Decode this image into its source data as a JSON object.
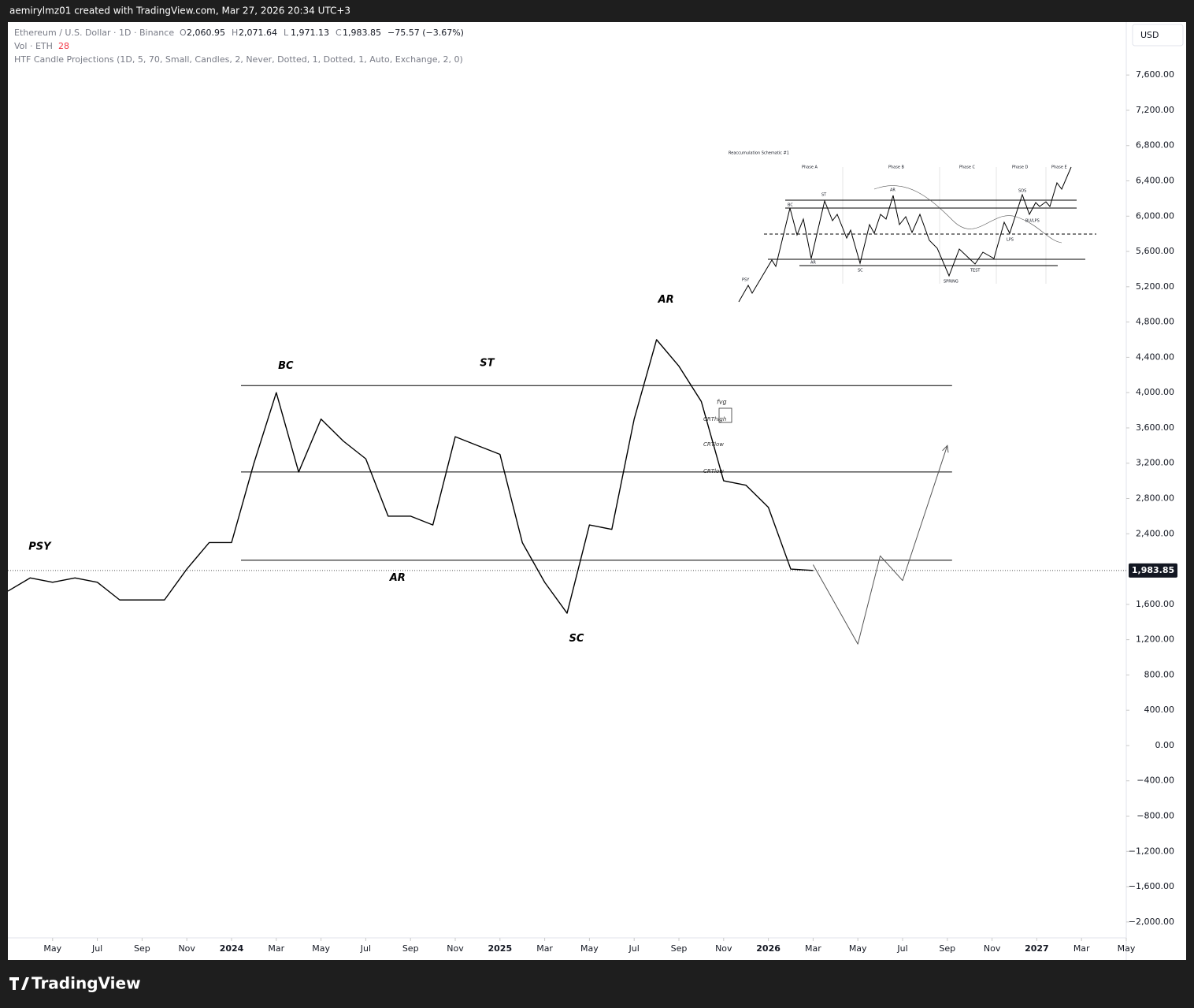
{
  "chart_data": {
    "type": "line",
    "top_caption": "aemirylmz01 created with TradingView.com, Mar 27, 2026 20:34 UTC+3",
    "symbol": "Ethereum / U.S. Dollar · 1D · Binance",
    "ohlc": [
      {
        "key": "O",
        "value": "2,060.95"
      },
      {
        "key": "H",
        "value": "2,071.64"
      },
      {
        "key": "L",
        "value": "1,971.13"
      },
      {
        "key": "C",
        "value": "1,983.85"
      }
    ],
    "change": "−75.57 (−3.67%)",
    "volume_label": "Vol · ETH",
    "volume_value": "28",
    "indicator": "HTF Candle Projections (1D, 5, 70, Small, Candles, 2, Never, Dotted, 1, Dotted, 1, Auto, Exchange, 2, 0)",
    "currency": "USD",
    "brand": "TradingView",
    "last_price": {
      "value": 1983.85,
      "label": "1,983.85"
    },
    "xlim": [
      "2023-03",
      "2027-05"
    ],
    "ylim": [
      -2180,
      8200
    ],
    "xticks": [
      {
        "value": "2023-05",
        "label": "May"
      },
      {
        "value": "2023-07",
        "label": "Jul"
      },
      {
        "value": "2023-09",
        "label": "Sep"
      },
      {
        "value": "2023-11",
        "label": "Nov"
      },
      {
        "value": "2024-01",
        "label": "2024"
      },
      {
        "value": "2024-03",
        "label": "Mar"
      },
      {
        "value": "2024-05",
        "label": "May"
      },
      {
        "value": "2024-07",
        "label": "Jul"
      },
      {
        "value": "2024-09",
        "label": "Sep"
      },
      {
        "value": "2024-11",
        "label": "Nov"
      },
      {
        "value": "2025-01",
        "label": "2025"
      },
      {
        "value": "2025-03",
        "label": "Mar"
      },
      {
        "value": "2025-05",
        "label": "May"
      },
      {
        "value": "2025-07",
        "label": "Jul"
      },
      {
        "value": "2025-09",
        "label": "Sep"
      },
      {
        "value": "2025-11",
        "label": "Nov"
      },
      {
        "value": "2026-01",
        "label": "2026"
      },
      {
        "value": "2026-03",
        "label": "Mar"
      },
      {
        "value": "2026-05",
        "label": "May"
      },
      {
        "value": "2026-07",
        "label": "Jul"
      },
      {
        "value": "2026-09",
        "label": "Sep"
      },
      {
        "value": "2026-11",
        "label": "Nov"
      },
      {
        "value": "2027-01",
        "label": "2027"
      },
      {
        "value": "2027-03",
        "label": "Mar"
      },
      {
        "value": "2027-05",
        "label": "May"
      }
    ],
    "yticks": [
      {
        "value": 7600,
        "label": "7,600.00"
      },
      {
        "value": 7200,
        "label": "7,200.00"
      },
      {
        "value": 6800,
        "label": "6,800.00"
      },
      {
        "value": 6400,
        "label": "6,400.00"
      },
      {
        "value": 6000,
        "label": "6,000.00"
      },
      {
        "value": 5600,
        "label": "5,600.00"
      },
      {
        "value": 5200,
        "label": "5,200.00"
      },
      {
        "value": 4800,
        "label": "4,800.00"
      },
      {
        "value": 4400,
        "label": "4,400.00"
      },
      {
        "value": 4000,
        "label": "4,000.00"
      },
      {
        "value": 3600,
        "label": "3,600.00"
      },
      {
        "value": 3200,
        "label": "3,200.00"
      },
      {
        "value": 2800,
        "label": "2,800.00"
      },
      {
        "value": 2400,
        "label": "2,400.00"
      },
      {
        "value": 1600,
        "label": "1,600.00"
      },
      {
        "value": 1200,
        "label": "1,200.00"
      },
      {
        "value": 800,
        "label": "800.00"
      },
      {
        "value": 400,
        "label": "400.00"
      },
      {
        "value": 0,
        "label": "0.00"
      },
      {
        "value": -400,
        "label": "−400.00"
      },
      {
        "value": -800,
        "label": "−800.00"
      },
      {
        "value": -1200,
        "label": "−1,200.00"
      },
      {
        "value": -1600,
        "label": "−1,600.00"
      },
      {
        "value": -2000,
        "label": "−2,000.00"
      }
    ],
    "x": [
      "2023-03",
      "2023-04",
      "2023-05",
      "2023-06",
      "2023-07",
      "2023-08",
      "2023-09",
      "2023-10",
      "2023-11",
      "2023-12",
      "2024-01",
      "2024-02",
      "2024-03",
      "2024-04",
      "2024-05",
      "2024-06",
      "2024-07",
      "2024-08",
      "2024-09",
      "2024-10",
      "2024-11",
      "2024-12",
      "2025-01",
      "2025-02",
      "2025-03",
      "2025-04",
      "2025-05",
      "2025-06",
      "2025-07",
      "2025-08",
      "2025-09",
      "2025-10",
      "2025-11",
      "2025-12",
      "2026-01",
      "2026-02",
      "2026-03"
    ],
    "series": [
      {
        "name": "ETH",
        "color": "#000000",
        "values": [
          1750,
          1900,
          1850,
          1900,
          1850,
          1650,
          1650,
          1650,
          2000,
          2300,
          2300,
          3200,
          4000,
          3100,
          3700,
          3450,
          3250,
          2600,
          2600,
          2500,
          3500,
          3400,
          3300,
          2300,
          1850,
          1500,
          2500,
          2450,
          3700,
          4600,
          4300,
          3900,
          3000,
          2950,
          2700,
          2000,
          1984
        ]
      }
    ],
    "projection": {
      "color": "#555555",
      "x": [
        "2026-03",
        "2026-05",
        "2026-06",
        "2026-07",
        "2026-09"
      ],
      "values": [
        2050,
        1150,
        2150,
        1870,
        3400
      ]
    },
    "levels": [
      4080,
      3100,
      2100
    ],
    "annotations": [
      {
        "text": "PSY",
        "x": "2023-04",
        "y": 2250
      },
      {
        "text": "BC",
        "x": "2024-03",
        "y": 4300
      },
      {
        "text": "AR",
        "x": "2024-08",
        "y": 1900
      },
      {
        "text": "ST",
        "x": "2024-12",
        "y": 4330
      },
      {
        "text": "SC",
        "x": "2025-04",
        "y": 1210
      },
      {
        "text": "AR",
        "x": "2025-08",
        "y": 5050
      }
    ],
    "small_labels": [
      "fvg",
      "CRThigh",
      "CRTlow",
      "CRTlow"
    ],
    "schematic": {
      "title": "Reaccumulation Schematic #1",
      "phases": [
        "Phase A",
        "Phase B",
        "Phase C",
        "Phase D",
        "Phase E"
      ],
      "labels": [
        "PSY",
        "BC",
        "ST",
        "AR",
        "AR",
        "SC",
        "SPRING",
        "TEST",
        "LPS",
        "SOS",
        "BU/LPS"
      ]
    }
  }
}
